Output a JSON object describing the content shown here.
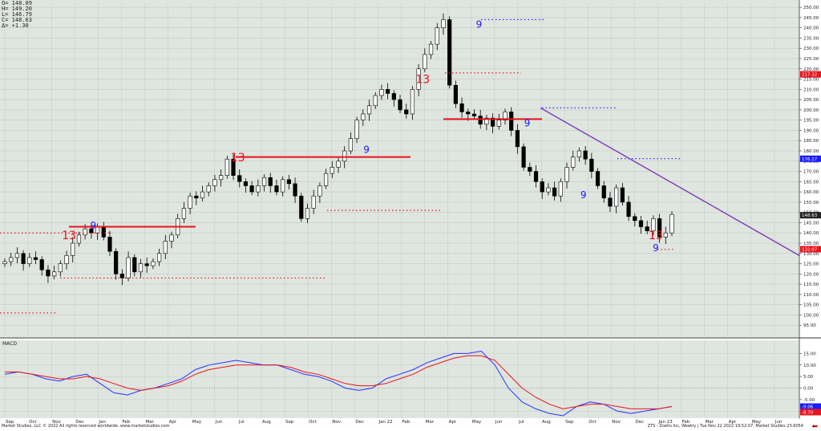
{
  "ohlc_legend": [
    "O= 148.09",
    "H= 149.20",
    "L= 146.79",
    "C= 148.63",
    "Δ= +1.30"
  ],
  "macd_label": "MACD",
  "footer": {
    "left": "Market Studies, LLC © 2022 All rights reserved worldwide. www.marketstudies.com",
    "right": "ZTS - Zoetis Inc, Weekly | Tue Nov 22 2022 19:52:07, Market Studies 23.6054"
  },
  "colors": {
    "bull": "#ffffff",
    "bear": "#000000",
    "red": "#e8141e",
    "blue": "#1a1aff",
    "purple": "#7b3fb5",
    "macd": "#2233ff",
    "signal": "#e8141e",
    "bg": "#dfe5df"
  },
  "chart_data": [
    {
      "type": "candlestick",
      "title": "",
      "ylim": [
        90,
        252
      ],
      "y_ticks": [
        95,
        100,
        105,
        110,
        115,
        120,
        125,
        130,
        135,
        140,
        145,
        150,
        155,
        160,
        165,
        170,
        175,
        180,
        185,
        190,
        195,
        200,
        205,
        210,
        215,
        220,
        225,
        230,
        235,
        240,
        245,
        250
      ],
      "x_labels": [
        "Sep",
        "Oct",
        "Nov",
        "Dec",
        "Jan",
        "Feb",
        "Mar",
        "Apr",
        "May",
        "Jun",
        "Jul",
        "Aug",
        "Sep",
        "Oct",
        "Nov",
        "Dec",
        "Jan 22",
        "Feb",
        "Mar",
        "Apr",
        "May",
        "Jun",
        "Jul",
        "Aug",
        "Sep",
        "Oct",
        "Nov",
        "Dec",
        "Jan 23",
        "Feb",
        "Mar",
        "Apr",
        "May",
        "Jun"
      ],
      "price_labels": [
        {
          "value": 217.32,
          "text": "217.32",
          "color": "#e8141e"
        },
        {
          "value": 176.17,
          "text": "176.17",
          "color": "#1a1aff"
        },
        {
          "value": 148.63,
          "text": "148.63",
          "color": "#222222"
        },
        {
          "value": 132.07,
          "text": "132.07",
          "color": "#e8141e"
        }
      ],
      "close_path": [
        126,
        128,
        130,
        125,
        128,
        127,
        122,
        119,
        121,
        125,
        129,
        135,
        139,
        142,
        140,
        143,
        138,
        131,
        120,
        118,
        128,
        121,
        125,
        124,
        126,
        130,
        136,
        139,
        147,
        152,
        158,
        157,
        160,
        163,
        166,
        168,
        176,
        168,
        165,
        163,
        160,
        163,
        167,
        163,
        160,
        166,
        164,
        158,
        147,
        152,
        158,
        163,
        169,
        172,
        175,
        180,
        186,
        195,
        198,
        202,
        207,
        210,
        208,
        205,
        200,
        198,
        210,
        220,
        227,
        232,
        240,
        244,
        212,
        203,
        199,
        198,
        197,
        193,
        196,
        192,
        195,
        199,
        190,
        182,
        172,
        170,
        165,
        160,
        162,
        158,
        165,
        172,
        177,
        180,
        176,
        170,
        163,
        157,
        153,
        162,
        155,
        148,
        146,
        143,
        141,
        147,
        138,
        140,
        149
      ]
    },
    {
      "type": "line",
      "title": "MACD",
      "ylim": [
        -12,
        20
      ],
      "y_ticks": [
        -10,
        -5,
        0,
        5,
        10,
        15
      ],
      "series": [
        {
          "name": "MACD",
          "values": [
            6,
            7,
            6,
            4,
            3,
            5,
            6,
            2,
            -2,
            -3,
            -1,
            0,
            2,
            4,
            8,
            10,
            11,
            12,
            11,
            10,
            10,
            8,
            6,
            5,
            3,
            0,
            -1,
            0,
            4,
            6,
            8,
            11,
            13,
            15,
            15,
            16,
            10,
            0,
            -6,
            -9,
            -11,
            -12,
            -8,
            -6,
            -7,
            -10,
            -11,
            -10,
            -9,
            -8
          ]
        },
        {
          "name": "Signal",
          "values": [
            7,
            7,
            6,
            5,
            4,
            4,
            5,
            4,
            2,
            0,
            -1,
            0,
            1,
            3,
            6,
            8,
            9,
            10,
            10,
            10,
            10,
            9,
            7,
            6,
            4,
            2,
            1,
            1,
            2,
            4,
            6,
            9,
            11,
            13,
            14,
            14,
            12,
            6,
            0,
            -4,
            -7,
            -9,
            -8,
            -7,
            -7,
            -8,
            -9,
            -9,
            -9,
            -8
          ]
        }
      ],
      "value_labels": [
        {
          "value": -9.06,
          "text": "-9.06",
          "color": "#1a1aff"
        },
        {
          "value": -8.7,
          "text": "-8.70",
          "color": "#e8141e"
        }
      ]
    }
  ],
  "annotations": [
    {
      "text": "13",
      "x": 0.08,
      "y": 137,
      "color": "#e8141e",
      "size": 14
    },
    {
      "text": "9",
      "x": 0.11,
      "y": 142,
      "color": "#1a1aff",
      "size": 12
    },
    {
      "text": "13",
      "x": 0.29,
      "y": 175,
      "color": "#e8141e",
      "size": 14
    },
    {
      "text": "9",
      "x": 0.45,
      "y": 179,
      "color": "#1a1aff",
      "size": 12
    },
    {
      "text": "13",
      "x": 0.52,
      "y": 213,
      "color": "#e8141e",
      "size": 14
    },
    {
      "text": "9",
      "x": 0.59,
      "y": 240,
      "color": "#1a1aff",
      "size": 12
    },
    {
      "text": "9",
      "x": 0.65,
      "y": 192,
      "color": "#1a1aff",
      "size": 12
    },
    {
      "text": "9",
      "x": 0.72,
      "y": 157,
      "color": "#1a1aff",
      "size": 12
    },
    {
      "text": "13",
      "x": 0.81,
      "y": 137,
      "color": "#e8141e",
      "size": 14
    },
    {
      "text": "9",
      "x": 0.81,
      "y": 131,
      "color": "#1a1aff",
      "size": 12
    }
  ]
}
